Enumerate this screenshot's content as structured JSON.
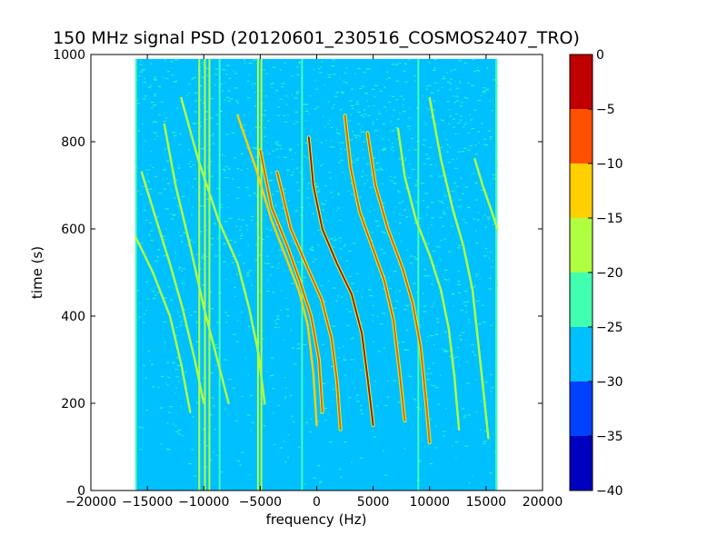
{
  "chart_data": {
    "type": "heatmap",
    "title": "150 MHz signal PSD (20120601_230516_COSMOS2407_TRO)",
    "xlabel": "frequency (Hz)",
    "ylabel": "time (s)",
    "xlim": [
      -20000,
      20000
    ],
    "ylim": [
      0,
      1000
    ],
    "xticks": [
      -20000,
      -15000,
      -10000,
      -5000,
      0,
      5000,
      10000,
      15000,
      20000
    ],
    "xtick_labels": [
      "−20000",
      "−15000",
      "−10000",
      "−5000",
      "0",
      "5000",
      "10000",
      "15000",
      "20000"
    ],
    "yticks": [
      0,
      200,
      400,
      600,
      800,
      1000
    ],
    "ytick_labels": [
      "0",
      "200",
      "400",
      "600",
      "800",
      "1000"
    ],
    "data_extent": {
      "x": [
        -16000,
        16000
      ],
      "y": [
        0,
        990
      ]
    },
    "background_level_db": -27,
    "grid": false,
    "colorbar": {
      "levels": [
        -40,
        -35,
        -30,
        -25,
        -20,
        -15,
        -10,
        -5,
        0
      ],
      "tick_labels": [
        "−40",
        "−35",
        "−30",
        "−25",
        "−20",
        "−15",
        "−10",
        "−5",
        "0"
      ],
      "colors": [
        "#0000c0",
        "#0040ff",
        "#00c0ff",
        "#40ffb0",
        "#b0ff40",
        "#ffd000",
        "#ff5000",
        "#c00000"
      ]
    },
    "vertical_lines": [
      {
        "x": -16000,
        "level_db": -22
      },
      {
        "x": -10400,
        "level_db": -20
      },
      {
        "x": -9900,
        "level_db": -16
      },
      {
        "x": -9500,
        "level_db": -20
      },
      {
        "x": -8600,
        "level_db": -22
      },
      {
        "x": -5200,
        "level_db": -16
      },
      {
        "x": -4900,
        "level_db": -20
      },
      {
        "x": -1300,
        "level_db": -22
      },
      {
        "x": 9000,
        "level_db": -22
      },
      {
        "x": 15900,
        "level_db": -22
      }
    ],
    "doppler_traces": [
      {
        "points": [
          [
            -16000,
            580
          ],
          [
            -14500,
            500
          ],
          [
            -13000,
            400
          ],
          [
            -12000,
            290
          ],
          [
            -11200,
            180
          ]
        ],
        "level_db": -20
      },
      {
        "points": [
          [
            -15500,
            730
          ],
          [
            -14200,
            620
          ],
          [
            -13000,
            520
          ],
          [
            -11900,
            420
          ],
          [
            -10800,
            300
          ],
          [
            -10000,
            200
          ]
        ],
        "level_db": -20
      },
      {
        "points": [
          [
            -13500,
            840
          ],
          [
            -12500,
            700
          ],
          [
            -11200,
            560
          ],
          [
            -10000,
            420
          ],
          [
            -8800,
            300
          ],
          [
            -7800,
            200
          ]
        ],
        "level_db": -20
      },
      {
        "points": [
          [
            -12000,
            900
          ],
          [
            -10500,
            760
          ],
          [
            -8700,
            620
          ],
          [
            -7000,
            520
          ],
          [
            -6000,
            420
          ],
          [
            -5200,
            320
          ],
          [
            -4600,
            200
          ]
        ],
        "level_db": -20
      },
      {
        "points": [
          [
            -7000,
            860
          ],
          [
            -5400,
            740
          ],
          [
            -4000,
            620
          ],
          [
            -2800,
            540
          ],
          [
            -1600,
            460
          ],
          [
            -800,
            380
          ],
          [
            -300,
            270
          ],
          [
            0,
            150
          ]
        ],
        "level_db": -15
      },
      {
        "points": [
          [
            -5000,
            780
          ],
          [
            -4000,
            650
          ],
          [
            -2600,
            560
          ],
          [
            -1500,
            480
          ],
          [
            -500,
            400
          ],
          [
            200,
            300
          ],
          [
            500,
            180
          ]
        ],
        "level_db": -10
      },
      {
        "points": [
          [
            -3500,
            730
          ],
          [
            -2300,
            600
          ],
          [
            -800,
            510
          ],
          [
            400,
            440
          ],
          [
            1300,
            350
          ],
          [
            1800,
            250
          ],
          [
            2100,
            140
          ]
        ],
        "level_db": -10
      },
      {
        "points": [
          [
            -700,
            810
          ],
          [
            -300,
            700
          ],
          [
            500,
            600
          ],
          [
            1800,
            520
          ],
          [
            3100,
            450
          ],
          [
            4000,
            360
          ],
          [
            4500,
            260
          ],
          [
            5000,
            150
          ]
        ],
        "level_db": -5
      },
      {
        "points": [
          [
            2500,
            860
          ],
          [
            3000,
            740
          ],
          [
            3800,
            640
          ],
          [
            4900,
            560
          ],
          [
            6000,
            480
          ],
          [
            6800,
            390
          ],
          [
            7300,
            280
          ],
          [
            7800,
            160
          ]
        ],
        "level_db": -10
      },
      {
        "points": [
          [
            4500,
            820
          ],
          [
            5200,
            700
          ],
          [
            6300,
            600
          ],
          [
            7600,
            510
          ],
          [
            8500,
            430
          ],
          [
            9200,
            330
          ],
          [
            9700,
            200
          ],
          [
            10000,
            110
          ]
        ],
        "level_db": -10
      },
      {
        "points": [
          [
            7200,
            830
          ],
          [
            7800,
            720
          ],
          [
            8800,
            620
          ],
          [
            10000,
            540
          ],
          [
            11000,
            460
          ],
          [
            11700,
            370
          ],
          [
            12200,
            260
          ],
          [
            12600,
            140
          ]
        ],
        "level_db": -20
      },
      {
        "points": [
          [
            10000,
            900
          ],
          [
            11000,
            760
          ],
          [
            12000,
            650
          ],
          [
            13000,
            560
          ],
          [
            13800,
            460
          ],
          [
            14300,
            340
          ],
          [
            14800,
            220
          ],
          [
            15200,
            120
          ]
        ],
        "level_db": -20
      },
      {
        "points": [
          [
            14000,
            760
          ],
          [
            14700,
            700
          ],
          [
            15500,
            640
          ],
          [
            16000,
            600
          ]
        ],
        "level_db": -20
      }
    ]
  }
}
